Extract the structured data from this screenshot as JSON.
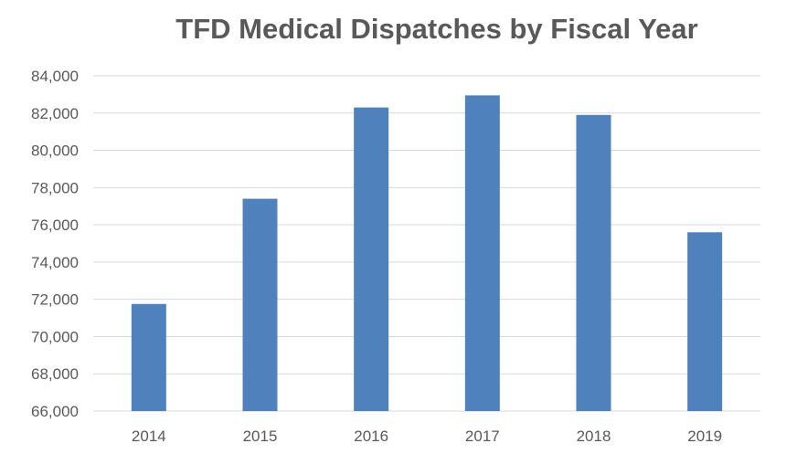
{
  "chart_data": {
    "type": "bar",
    "title": "TFD Medical Dispatches by Fiscal Year",
    "xlabel": "",
    "ylabel": "",
    "categories": [
      "2014",
      "2015",
      "2016",
      "2017",
      "2018",
      "2019"
    ],
    "values": [
      71750,
      77400,
      82300,
      82950,
      81900,
      75600
    ],
    "ylim": [
      66000,
      84000
    ],
    "yticks": [
      66000,
      68000,
      70000,
      72000,
      74000,
      76000,
      78000,
      80000,
      82000,
      84000
    ],
    "ytick_labels": [
      "66,000",
      "68,000",
      "70,000",
      "72,000",
      "74,000",
      "76,000",
      "78,000",
      "80,000",
      "82,000",
      "84,000"
    ],
    "grid": true,
    "legend": "none",
    "bar_color": "#4f81bd"
  }
}
